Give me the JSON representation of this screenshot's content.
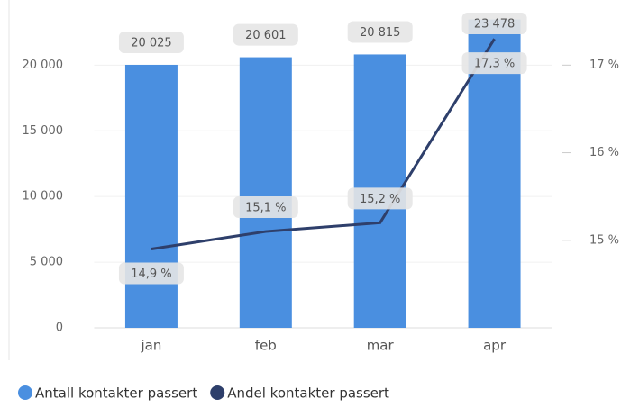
{
  "chart_data": {
    "type": "bar-line",
    "categories": [
      "jan",
      "feb",
      "mar",
      "apr"
    ],
    "series": [
      {
        "name": "Antall kontakter passert",
        "type": "bar",
        "color": "#4a8fe0",
        "values": [
          20025,
          20601,
          20815,
          23478
        ],
        "value_labels": [
          "20 025",
          "20 601",
          "20 815",
          "23 478"
        ]
      },
      {
        "name": "Andel kontakter passert",
        "type": "line",
        "axis": "y2",
        "color": "#2e3f6b",
        "values": [
          14.9,
          15.1,
          15.2,
          17.3
        ],
        "value_labels": [
          "14,9 %",
          "15,1 %",
          "15,2 %",
          "17,3 %"
        ]
      }
    ],
    "ylim": [
      0,
      24000
    ],
    "yticks": [
      0,
      {
        "value": 5000,
        "label": "5 000"
      },
      {
        "value": 10000,
        "label": "10 000"
      },
      {
        "value": 15000,
        "label": "15 000"
      },
      {
        "value": 20000,
        "label": "20 000"
      }
    ],
    "y2lim": [
      14,
      17.6
    ],
    "y2ticks": [
      {
        "value": 15,
        "label": "15 %"
      },
      {
        "value": 16,
        "label": "16 %"
      },
      {
        "value": 17,
        "label": "17 %"
      }
    ],
    "grid": true,
    "legend": "bottom"
  }
}
